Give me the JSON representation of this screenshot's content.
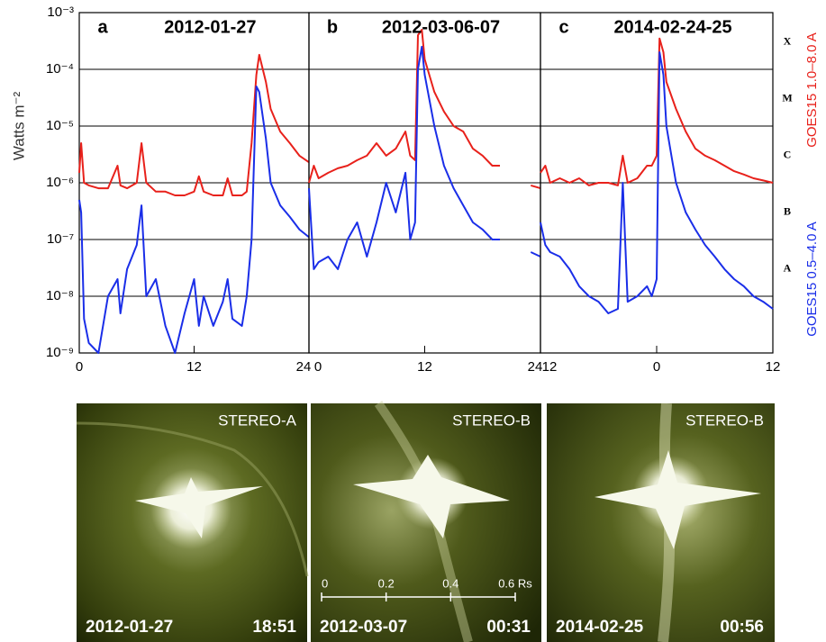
{
  "chart_data": [
    {
      "type": "line",
      "panel_label": "a",
      "title": "2012-01-27",
      "ylabel": "Watts m⁻²",
      "log_y": true,
      "grid": true,
      "xlim": [
        0,
        24
      ],
      "xticks": [
        0,
        12,
        24
      ],
      "ylim": [
        1e-09,
        0.001
      ],
      "yticks": [
        {
          "value": 1e-09,
          "label": "10⁻⁹"
        },
        {
          "value": 1e-08,
          "label": "10⁻⁸"
        },
        {
          "value": 1e-07,
          "label": "10⁻⁷"
        },
        {
          "value": 1e-06,
          "label": "10⁻⁶"
        },
        {
          "value": 1e-05,
          "label": "10⁻⁵"
        },
        {
          "value": 0.0001,
          "label": "10⁻⁴"
        },
        {
          "value": 0.001,
          "label": "10⁻³"
        }
      ],
      "x": [
        0,
        0.2,
        0.5,
        1,
        2,
        3,
        4,
        4.3,
        5,
        6,
        6.5,
        7,
        8,
        9,
        10,
        11,
        12,
        12.5,
        13,
        14,
        15,
        15.5,
        16,
        17,
        17.5,
        18,
        18.5,
        18.8,
        19.5,
        20,
        21,
        22,
        23,
        24
      ],
      "series": [
        {
          "color": "#e8211b",
          "values": [
            1.5e-06,
            5e-06,
            1e-06,
            9e-07,
            8e-07,
            8e-07,
            2e-06,
            9e-07,
            8e-07,
            1e-06,
            5e-06,
            1e-06,
            7e-07,
            7e-07,
            6e-07,
            6e-07,
            7e-07,
            1.3e-06,
            7e-07,
            6e-07,
            6e-07,
            1.2e-06,
            6e-07,
            6e-07,
            7e-07,
            5e-06,
            8e-05,
            0.00018,
            6e-05,
            2e-05,
            8e-06,
            5e-06,
            3e-06,
            2.3e-06
          ]
        },
        {
          "color": "#1a2ee8",
          "values": [
            5e-07,
            3e-07,
            4e-09,
            1.5e-09,
            1e-09,
            1e-08,
            2e-08,
            5e-09,
            3e-08,
            8e-08,
            4e-07,
            1e-08,
            2e-08,
            3e-09,
            1e-09,
            5e-09,
            2e-08,
            3e-09,
            1e-08,
            3e-09,
            8e-09,
            2e-08,
            4e-09,
            3e-09,
            1e-08,
            1e-07,
            5e-05,
            4e-05,
            6e-06,
            1e-06,
            4e-07,
            2.5e-07,
            1.5e-07,
            1.1e-07
          ]
        }
      ]
    },
    {
      "type": "line",
      "panel_label": "b",
      "title": "2012-03-06-07",
      "log_y": true,
      "grid": true,
      "xlim": [
        0,
        24
      ],
      "xticks": [
        0,
        12,
        24
      ],
      "ylim": [
        1e-09,
        0.001
      ],
      "x": [
        0,
        0.5,
        1,
        2,
        3,
        4,
        5,
        6,
        7,
        8,
        9,
        10,
        10.5,
        11,
        11.3,
        11.7,
        12,
        13,
        14,
        15,
        16,
        17,
        18,
        19,
        19.8,
        20.5,
        21,
        22,
        23,
        24
      ],
      "series": [
        {
          "color": "#e8211b",
          "values": [
            1e-06,
            2e-06,
            1.2e-06,
            1.5e-06,
            1.8e-06,
            2e-06,
            2.5e-06,
            3e-06,
            5e-06,
            3e-06,
            4e-06,
            8e-06,
            3e-06,
            2.5e-06,
            0.0004,
            0.0005,
            0.00015,
            4e-05,
            1.8e-05,
            1e-05,
            8e-06,
            4e-06,
            3e-06,
            2e-06,
            2e-06,
            null,
            1.5e-06,
            null,
            9e-07,
            8e-07
          ]
        },
        {
          "color": "#1a2ee8",
          "values": [
            8e-07,
            3e-08,
            4e-08,
            5e-08,
            3e-08,
            1e-07,
            2e-07,
            5e-08,
            2e-07,
            1e-06,
            3e-07,
            1.5e-06,
            1e-07,
            2e-07,
            0.0001,
            0.00025,
            8e-05,
            1e-05,
            2e-06,
            8e-07,
            4e-07,
            2e-07,
            1.5e-07,
            1e-07,
            1e-07,
            null,
            8e-08,
            null,
            6e-08,
            5e-08
          ]
        }
      ]
    },
    {
      "type": "line",
      "panel_label": "c",
      "title": "2014-02-24-25",
      "log_y": true,
      "grid": true,
      "xlim": [
        -12,
        12
      ],
      "xticks": [
        {
          "value": -12,
          "label": "12"
        },
        0,
        12
      ],
      "ylim": [
        1e-09,
        0.001
      ],
      "y2lim": [
        1e-09,
        0.001
      ],
      "y2ticks": [
        {
          "value": 0.0003,
          "label": "X"
        },
        {
          "value": 3e-05,
          "label": "M"
        },
        {
          "value": 3e-06,
          "label": "C"
        },
        {
          "value": 3e-07,
          "label": "B"
        },
        {
          "value": 3e-08,
          "label": "A"
        }
      ],
      "x": [
        -12,
        -11.5,
        -11,
        -10,
        -9,
        -8,
        -7,
        -6,
        -5,
        -4,
        -3.5,
        -3,
        -2,
        -1,
        -0.5,
        0,
        0.3,
        0.7,
        1,
        2,
        3,
        4,
        5,
        6,
        7,
        8,
        9,
        10,
        11,
        12
      ],
      "series": [
        {
          "name": "GOES15 1.0–8.0 A",
          "color": "#e8211b",
          "values": [
            1.5e-06,
            2e-06,
            1e-06,
            1.2e-06,
            1e-06,
            1.2e-06,
            9e-07,
            1e-06,
            1e-06,
            9e-07,
            3e-06,
            1e-06,
            1.2e-06,
            2e-06,
            2e-06,
            3e-06,
            0.00035,
            0.0002,
            6e-05,
            2e-05,
            8e-06,
            4e-06,
            3e-06,
            2.5e-06,
            2e-06,
            1.6e-06,
            1.4e-06,
            1.2e-06,
            1.1e-06,
            1e-06
          ]
        },
        {
          "name": "GOES15 0.5–4.0 A",
          "color": "#1a2ee8",
          "values": [
            2e-07,
            8e-08,
            6e-08,
            5e-08,
            3e-08,
            1.5e-08,
            1e-08,
            8e-09,
            5e-09,
            6e-09,
            1e-06,
            8e-09,
            1e-08,
            1.5e-08,
            1e-08,
            2e-08,
            0.0002,
            8e-05,
            1e-05,
            1e-06,
            3e-07,
            1.5e-07,
            8e-08,
            5e-08,
            3e-08,
            2e-08,
            1.5e-08,
            1e-08,
            8e-09,
            6e-09
          ]
        }
      ]
    }
  ],
  "images": [
    {
      "label": "STEREO-A",
      "date": "2012-01-27",
      "time": "18:51"
    },
    {
      "label": "STEREO-B",
      "date": "2012-03-07",
      "time": "00:31",
      "scale_bar": [
        "0",
        "0.2",
        "0.4",
        "0.6 Rs"
      ]
    },
    {
      "label": "STEREO-B",
      "date": "2014-02-25",
      "time": "00:56"
    }
  ]
}
